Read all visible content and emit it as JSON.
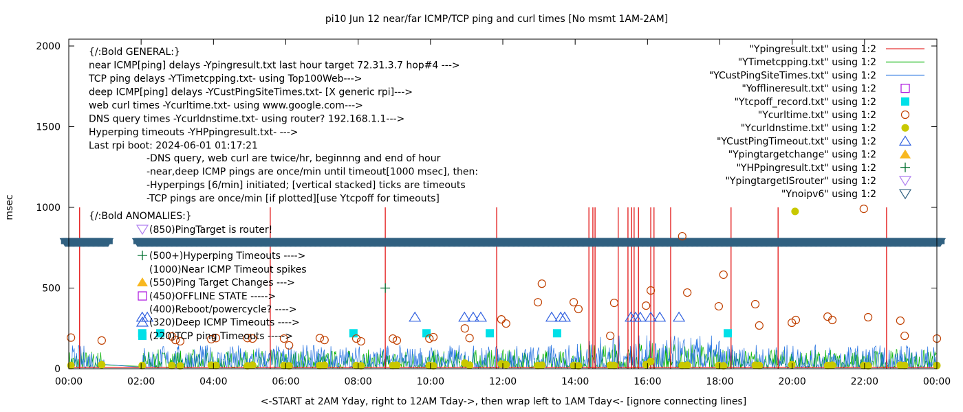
{
  "chart_data": {
    "type": "line",
    "title": "pi10 Jun 12  near/far ICMP/TCP ping and curl times [No msmt 1AM-2AM]",
    "xlabel": "<-START at 2AM Yday, right to 12AM Tday->, then wrap left to 1AM Tday<- [ignore connecting lines]",
    "ylabel": "msec",
    "xlim": [
      0,
      24
    ],
    "ylim": [
      0,
      2000
    ],
    "x_ticks": [
      "00:00",
      "02:00",
      "04:00",
      "06:00",
      "08:00",
      "10:00",
      "12:00",
      "14:00",
      "16:00",
      "18:00",
      "20:00",
      "22:00",
      "00:00"
    ],
    "y_ticks": [
      "0",
      "500",
      "1000",
      "1500",
      "2000"
    ],
    "legend_position": "top-right",
    "legend": [
      {
        "label": "\"Ypingresult.txt\" using 1:2",
        "style": "line",
        "color": "#e00000"
      },
      {
        "label": "\"YTimetcpping.txt\" using 1:2",
        "style": "line",
        "color": "#00b000"
      },
      {
        "label": "\"YCustPingSiteTimes.txt\" using 1:2",
        "style": "line",
        "color": "#1f6fe0"
      },
      {
        "label": "\"Yofflineresult.txt\" using 1:2",
        "style": "open-square",
        "color": "#b020e0"
      },
      {
        "label": "\"Ytcpoff_record.txt\" using 1:2",
        "style": "filled-square",
        "color": "#00e0e8"
      },
      {
        "label": "\"Ycurltime.txt\" using 1:2",
        "style": "open-circle",
        "color": "#c04000"
      },
      {
        "label": "\"Ycurldnstime.txt\" using 1:2",
        "style": "filled-circle",
        "color": "#c8c800"
      },
      {
        "label": "\"YCustPingTimeout.txt\" using 1:2",
        "style": "open-triangle",
        "color": "#3060e0"
      },
      {
        "label": "\"Ypingtargetchange\" using 1:2",
        "style": "filled-triangle",
        "color": "#f8b820"
      },
      {
        "label": "\"YHPpingresult.txt\" using 1:2",
        "style": "plus",
        "color": "#007030"
      },
      {
        "label": "\"YpingtargetISrouter\" using 1:2",
        "style": "open-down-triangle",
        "color": "#b080f0"
      },
      {
        "label": "\"Ynoipv6\" using 1:2",
        "style": "open-down-triangle",
        "color": "#306080"
      }
    ],
    "annotations": {
      "general": [
        "{/:Bold GENERAL:}",
        "near ICMP[ping] delays -Ypingresult.txt last hour target 72.31.3.7 hop#4 --->",
        "TCP ping delays -YTimetcpping.txt- using Top100Web--->",
        "deep ICMP[ping] delays -YCustPingSiteTimes.txt- [X generic rpi]--->",
        "web curl times -Ycurltime.txt- using www.google.com--->",
        "DNS query times -Ycurldnstime.txt- using router? 192.168.1.1--->",
        "Hyperping timeouts -YHPpingresult.txt- --->",
        "Last rpi boot: 2024-06-01 01:17:21"
      ],
      "notes": [
        "-DNS query, web curl are twice/hr, beginnng and end of hour",
        "-near,deep ICMP pings are once/min until timeout[1000 msec], then:",
        "  -Hyperpings [6/min] initiated; [vertical stacked] ticks are timeouts",
        "-TCP pings are once/min [if plotted][use Ytcpoff for timeouts]"
      ],
      "anomalies_title": "{/:Bold ANOMALIES:}",
      "anomalies": [
        {
          "text": "(850)PingTarget is router!",
          "marker": "open-down-triangle",
          "color": "#b080f0"
        },
        {
          "text": "(500+)Hyperping Timeouts ---->",
          "marker": "plus",
          "color": "#007030"
        },
        {
          "text": "(1000)Near ICMP Timeout spikes",
          "marker": "",
          "color": ""
        },
        {
          "text": "(550)Ping Target Changes --->",
          "marker": "filled-triangle",
          "color": "#f8b820"
        },
        {
          "text": "(450)OFFLINE STATE ----->",
          "marker": "open-square",
          "color": "#b020e0"
        },
        {
          "text": "(400)Reboot/powercycle? ---->",
          "marker": "",
          "color": ""
        },
        {
          "text": "(320)Deep ICMP Timeouts ---->",
          "marker": "open-triangle",
          "color": "#3060e0"
        },
        {
          "text": "(220)TCP ping Timeouts ----->",
          "marker": "filled-square",
          "color": "#00e0e8"
        }
      ]
    },
    "series": {
      "ping_timeout_spikes": {
        "value": 1000,
        "x": [
          0.3,
          5.57,
          8.75,
          11.83,
          14.38,
          14.49,
          14.55,
          15.19,
          15.46,
          15.56,
          15.63,
          15.75,
          16.09,
          16.18,
          16.64,
          18.31,
          19.61,
          22.61
        ]
      },
      "noipv6_band": {
        "value": 785,
        "ranges": [
          [
            -0.1,
            1.1
          ],
          [
            1.9,
            24.1
          ]
        ]
      },
      "cust_ping_timeouts": {
        "value": 320,
        "x": [
          2.03,
          2.17,
          9.57,
          10.94,
          11.18,
          11.39,
          13.35,
          13.6,
          13.71,
          15.54,
          15.67,
          15.8,
          16.09,
          16.34,
          16.87
        ]
      },
      "tcpoff": {
        "value": 220,
        "x": [
          2.03,
          2.53,
          7.87,
          9.89,
          11.64,
          13.5,
          18.22
        ]
      },
      "hpping": [
        {
          "x": 8.75,
          "y": 500
        }
      ],
      "curltime": {
        "x": [
          0.06,
          0.91,
          2.85,
          2.95,
          3.08,
          3.94,
          4.07,
          4.94,
          5.08,
          5.95,
          6.09,
          6.94,
          7.07,
          7.95,
          8.08,
          8.96,
          9.07,
          9.97,
          10.08,
          10.95,
          11.08,
          11.96,
          12.09,
          12.97,
          13.08,
          13.96,
          14.09,
          14.97,
          15.08,
          15.96,
          16.09,
          16.96,
          17.1,
          17.97,
          18.1,
          18.98,
          19.09,
          19.99,
          20.1,
          20.98,
          21.11,
          21.98,
          22.1,
          22.99,
          23.11,
          24.0
        ],
        "y": [
          193,
          175,
          200,
          178,
          170,
          183,
          190,
          190,
          187,
          187,
          145,
          190,
          178,
          187,
          170,
          187,
          175,
          187,
          196,
          250,
          190,
          306,
          280,
          412,
          527,
          412,
          370,
          204,
          408,
          391,
          485,
          821,
          472,
          387,
          583,
          400,
          268,
          285,
          302,
          323,
          302,
          991,
          319,
          298,
          204,
          187
        ]
      },
      "dnstime": {
        "x": [
          0.06,
          0.91,
          2.03,
          2.85,
          3.08,
          3.94,
          4.07,
          4.94,
          5.08,
          5.95,
          6.09,
          6.94,
          7.07,
          7.95,
          8.08,
          8.96,
          9.07,
          9.97,
          10.08,
          10.95,
          11.08,
          11.96,
          12.09,
          12.97,
          13.08,
          13.96,
          14.09,
          14.97,
          15.08,
          15.96,
          16.09,
          16.96,
          17.1,
          17.97,
          18.1,
          18.98,
          19.09,
          19.99,
          20.08,
          20.98,
          21.11,
          21.98,
          22.1,
          22.99,
          23.11,
          24.0
        ],
        "y": [
          20,
          25,
          20,
          20,
          18,
          22,
          20,
          18,
          22,
          20,
          18,
          20,
          22,
          20,
          18,
          20,
          22,
          20,
          18,
          35,
          22,
          30,
          25,
          20,
          22,
          20,
          18,
          22,
          20,
          25,
          45,
          20,
          22,
          20,
          18,
          22,
          20,
          25,
          975,
          20,
          22,
          20,
          18,
          22,
          20,
          20
        ]
      },
      "tcp_ping_typical_range": [
        5,
        120
      ],
      "cust_ping_typical_range": [
        5,
        150
      ]
    }
  }
}
